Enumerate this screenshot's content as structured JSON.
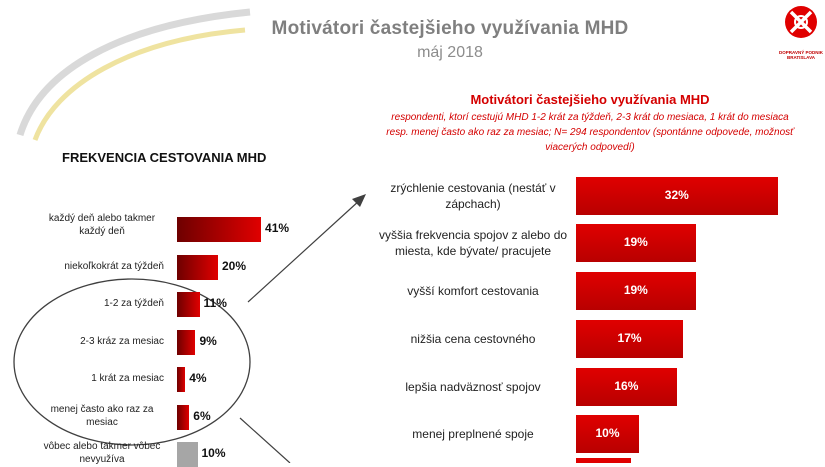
{
  "header": {
    "title": "Motivátori častejšieho využívania MHD",
    "subtitle": "máj 2018",
    "logo_text_line1": "DOPRAVNÝ PODNIK",
    "logo_text_line2": "BRATISLAVA"
  },
  "colors": {
    "red": "#e00000",
    "dark_red": "#6e0000",
    "gray_bar": "#a6a6a6",
    "title_gray": "#7f7f7f"
  },
  "chart_data": [
    {
      "type": "bar",
      "orientation": "horizontal",
      "title": "FREKVENCIA CESTOVANIA MHD",
      "categories": [
        "každý deň alebo takmer každý deň",
        "niekoľkokrát za týždeň",
        "1-2 za týždeň",
        "2-3 kráz za mesiac",
        "1 krát za mesiac",
        "menej často ako raz za mesiac",
        "vôbec alebo takmer vôbec nevyužíva"
      ],
      "values": [
        41,
        20,
        11,
        9,
        4,
        6,
        10
      ],
      "value_labels": [
        "41%",
        "20%",
        "11%",
        "9%",
        "4%",
        "6%",
        "10%"
      ],
      "unit": "%"
    },
    {
      "type": "bar",
      "orientation": "horizontal",
      "title": "Motivátori častejšieho využívania MHD",
      "note": "respondenti, ktorí cestujú MHD 1-2 krát za týždeň, 2-3 krát do mesiaca, 1 krát do mesiaca resp. menej často ako raz za mesiac; N= 294 respondentov (spontánne odpovede, možnosť viacerých odpovedí)",
      "categories": [
        "zrýchlenie cestovania (nestáť v zápchach)",
        "vyššia frekvencia spojov z alebo do miesta, kde bývate/ pracujete",
        "vyšší komfort cestovania",
        "nižšia cena cestovného",
        "lepšia nadväznosť spojov",
        "menej preplnené spoje"
      ],
      "values": [
        32,
        19,
        19,
        17,
        16,
        10
      ],
      "value_labels": [
        "32%",
        "19%",
        "19%",
        "17%",
        "16%",
        "10%"
      ],
      "unit": "%"
    }
  ]
}
